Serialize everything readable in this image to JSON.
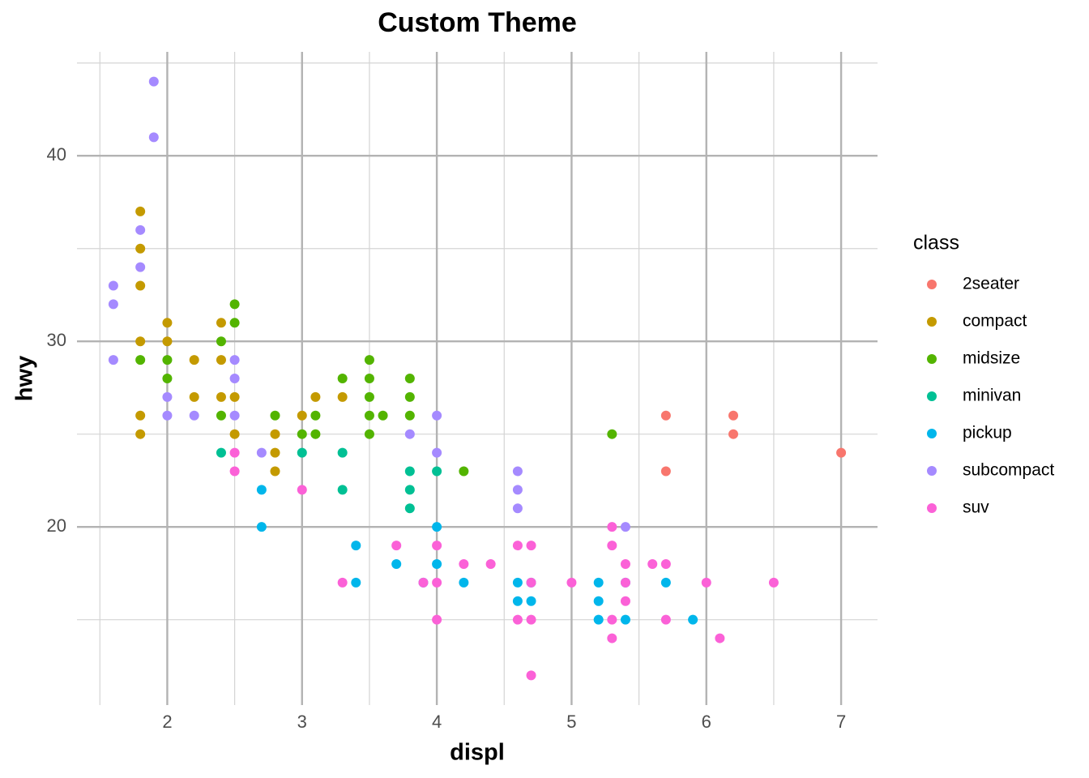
{
  "chart_data": {
    "type": "scatter",
    "title": "Custom Theme",
    "x_label": "displ",
    "y_label": "hwy",
    "xlim": [
      1.33,
      7.27
    ],
    "ylim": [
      10.4,
      45.6
    ],
    "xticks": [
      2,
      3,
      4,
      5,
      6,
      7
    ],
    "yticks": [
      20,
      30,
      40
    ],
    "xminor_ticks": [
      1.5,
      2.5,
      3.5,
      4.5,
      5.5,
      6.5
    ],
    "yminor_ticks": [
      15,
      25,
      35,
      45
    ],
    "grid": true,
    "legend_title": "class",
    "legend_position": "right",
    "series": [
      {
        "name": "2seater",
        "color": "#F8766D",
        "x": [
          5.7,
          5.7,
          6.2,
          6.2,
          7.0
        ],
        "values": [
          26,
          23,
          26,
          25,
          24
        ]
      },
      {
        "name": "compact",
        "color": "#C49A00",
        "x": [
          1.8,
          1.8,
          1.8,
          1.8,
          1.8,
          1.8,
          2.0,
          2.0,
          2.2,
          2.2,
          2.4,
          2.4,
          2.4,
          2.5,
          2.5,
          2.8,
          2.8,
          2.8,
          3.0,
          3.1,
          3.3
        ],
        "values": [
          37,
          35,
          33,
          30,
          26,
          25,
          31,
          30,
          29,
          27,
          31,
          29,
          27,
          27,
          25,
          25,
          24,
          23,
          26,
          27,
          27
        ]
      },
      {
        "name": "midsize",
        "color": "#53B400",
        "x": [
          1.8,
          2.0,
          2.0,
          2.4,
          2.4,
          2.5,
          2.5,
          2.8,
          3.0,
          3.1,
          3.1,
          3.3,
          3.5,
          3.5,
          3.5,
          3.5,
          3.5,
          3.6,
          3.8,
          3.8,
          3.8,
          4.2,
          5.3
        ],
        "values": [
          29,
          29,
          28,
          30,
          26,
          32,
          31,
          26,
          25,
          26,
          25,
          28,
          29,
          28,
          27,
          26,
          25,
          26,
          28,
          27,
          26,
          23,
          25
        ]
      },
      {
        "name": "minivan",
        "color": "#00C094",
        "x": [
          2.4,
          3.0,
          3.3,
          3.3,
          3.8,
          3.8,
          3.8,
          4.0
        ],
        "values": [
          24,
          24,
          24,
          22,
          23,
          22,
          21,
          23
        ]
      },
      {
        "name": "pickup",
        "color": "#00B6EB",
        "x": [
          2.7,
          2.7,
          3.4,
          3.4,
          3.7,
          3.9,
          4.0,
          4.0,
          4.2,
          4.6,
          4.6,
          4.7,
          4.7,
          5.2,
          5.2,
          5.2,
          5.4,
          5.4,
          5.7,
          5.9
        ],
        "values": [
          22,
          20,
          19,
          17,
          18,
          17,
          20,
          18,
          17,
          17,
          16,
          17,
          16,
          17,
          16,
          15,
          17,
          15,
          17,
          15
        ]
      },
      {
        "name": "subcompact",
        "color": "#A58AFF",
        "x": [
          1.6,
          1.6,
          1.6,
          1.8,
          1.8,
          1.9,
          1.9,
          2.0,
          2.0,
          2.2,
          2.5,
          2.5,
          2.5,
          2.7,
          3.8,
          4.0,
          4.0,
          4.6,
          4.6,
          4.6,
          5.4
        ],
        "values": [
          33,
          32,
          29,
          36,
          34,
          44,
          41,
          27,
          26,
          26,
          29,
          28,
          26,
          24,
          25,
          26,
          24,
          23,
          22,
          21,
          20
        ]
      },
      {
        "name": "suv",
        "color": "#FB61D7",
        "x": [
          2.5,
          2.5,
          3.0,
          3.3,
          3.7,
          3.9,
          4.0,
          4.0,
          4.0,
          4.2,
          4.4,
          4.6,
          4.6,
          4.7,
          4.7,
          4.7,
          4.7,
          5.0,
          5.3,
          5.3,
          5.3,
          5.3,
          5.4,
          5.4,
          5.4,
          5.6,
          5.7,
          5.7,
          6.0,
          6.1,
          6.5
        ],
        "values": [
          24,
          23,
          22,
          17,
          19,
          17,
          19,
          17,
          15,
          18,
          18,
          19,
          15,
          19,
          17,
          15,
          12,
          17,
          20,
          19,
          15,
          14,
          18,
          17,
          16,
          18,
          18,
          15,
          17,
          14,
          17
        ]
      }
    ]
  }
}
